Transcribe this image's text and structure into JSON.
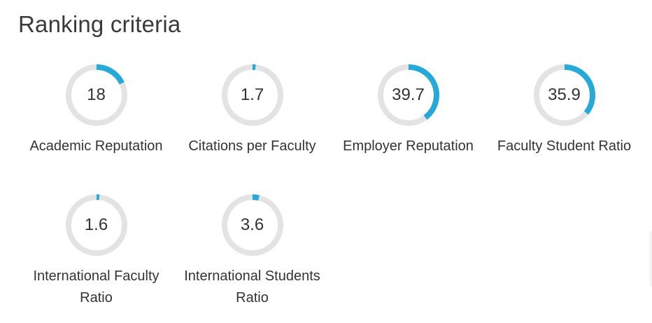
{
  "section": {
    "title": "Ranking criteria"
  },
  "colors": {
    "track": "#e3e3e3",
    "progress": "#26a9d6"
  },
  "criteria": [
    {
      "value": "18",
      "score": 18,
      "label": "Academic Reputation"
    },
    {
      "value": "1.7",
      "score": 1.7,
      "label": "Citations per Faculty"
    },
    {
      "value": "39.7",
      "score": 39.7,
      "label": "Employer Reputation"
    },
    {
      "value": "35.9",
      "score": 35.9,
      "label": "Faculty Student Ratio"
    },
    {
      "value": "1.6",
      "score": 1.6,
      "label": "International Faculty Ratio"
    },
    {
      "value": "3.6",
      "score": 3.6,
      "label": "International Students Ratio"
    }
  ]
}
